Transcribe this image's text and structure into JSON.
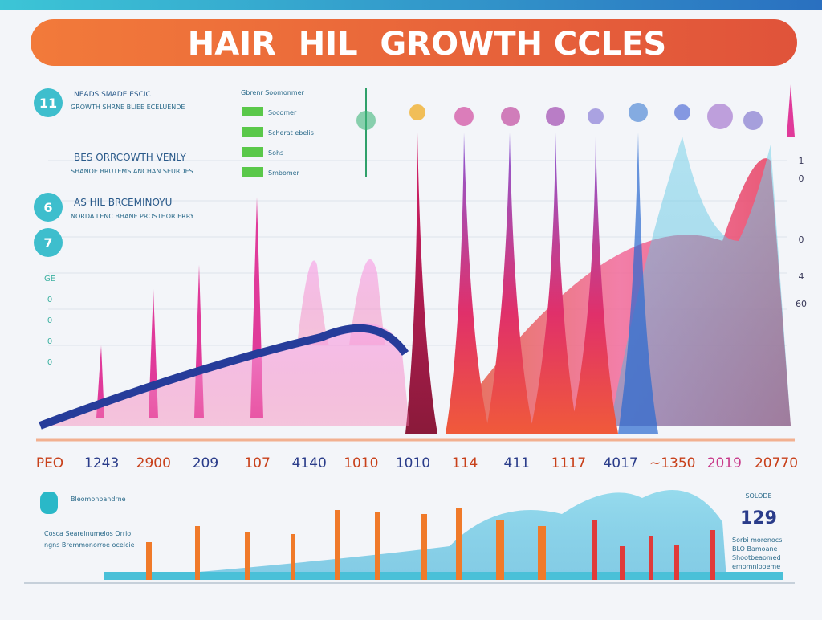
{
  "header": {
    "title": "HAIR  HIL  GROWTH CCLES"
  },
  "left_panel": [
    {
      "badge": "11",
      "heading": "NEADS SMADE ESCIC",
      "text": "GROWTH SHRNE BLIEE ECELUENDE"
    },
    {
      "badge": "6",
      "heading": "BES ORRCOWTH VENLY",
      "text": "SHANOE BRUTEMS ANCHAN SEURDES"
    },
    {
      "badge": "7",
      "heading": "AS HIL BRCEMINOYU",
      "text": "NORDA LENC BHANE PROSTHOR ERRY"
    }
  ],
  "key": {
    "title": "Gbrenr Soomonmer",
    "items": [
      "Socomer",
      "Scherat ebelis",
      "Sohs",
      "Smbomer"
    ]
  },
  "left_scale": [
    "GE",
    "0",
    "0",
    "0",
    "0"
  ],
  "right_scale": [
    "1",
    "0",
    "0",
    "4",
    "60"
  ],
  "x_labels": [
    "PEO",
    "1243",
    "2900",
    "209",
    "107",
    "4140",
    "1010",
    "1010",
    "114",
    "411",
    "1117",
    "4017",
    "~1350",
    "2019",
    "20770"
  ],
  "bottom_left": {
    "heading": "Bleomonbandrne",
    "lines": [
      "Cosca Searelnumelos Orrio",
      "ngns Bremmonorroe ocelcie"
    ]
  },
  "stat": {
    "label": "SOLODE",
    "value": "129",
    "lines": [
      "Sorbi morenocs",
      "BLO Bamoane",
      "Shootbeaomed",
      "emomnlooeme"
    ]
  }
}
